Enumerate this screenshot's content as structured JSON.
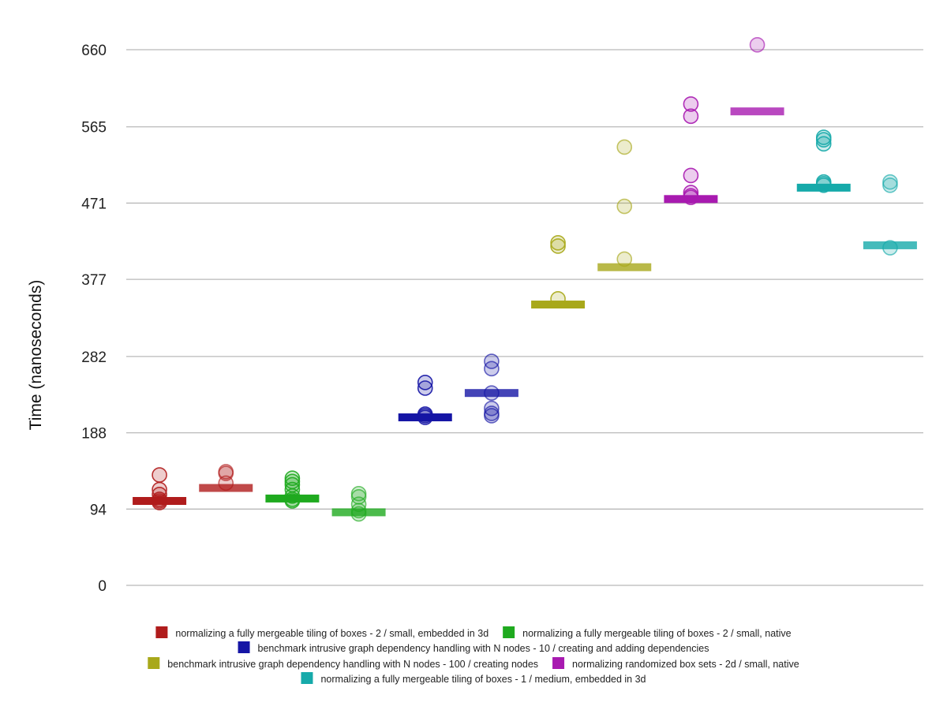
{
  "chart_data": {
    "type": "scatter",
    "ylabel": "Time (nanoseconds)",
    "xlabel": "",
    "ylim": [
      0,
      660
    ],
    "yticks": [
      0,
      94,
      188,
      282,
      377,
      471,
      565,
      660
    ],
    "grid": true,
    "legend_position": "bottom",
    "series": [
      {
        "name": "normalizing a fully mergeable tiling of boxes - 2 / small, embedded in 3d",
        "color": "#b01c1c",
        "groups": [
          {
            "median": 104,
            "points": [
              136,
              118,
              112,
              106,
              104,
              102
            ]
          },
          {
            "median": 120,
            "points": [
              140,
              138,
              126
            ]
          }
        ]
      },
      {
        "name": "normalizing a fully mergeable tiling of boxes - 2 / small, native",
        "color": "#1faa1f",
        "groups": [
          {
            "median": 107,
            "points": [
              132,
              128,
              124,
              118,
              110,
              106,
              104
            ]
          },
          {
            "median": 90,
            "points": [
              113,
              109,
              100,
              92,
              88
            ]
          }
        ]
      },
      {
        "name": "benchmark intrusive graph dependency handling with N nodes - 10 / creating and adding dependencies",
        "color": "#1515a5",
        "groups": [
          {
            "median": 207,
            "points": [
              250,
              243,
              211,
              209,
              207
            ]
          },
          {
            "median": 237,
            "points": [
              276,
              267,
              237,
              218,
              212,
              209
            ]
          }
        ]
      },
      {
        "name": "benchmark intrusive graph dependency handling with N nodes - 100 / creating nodes",
        "color": "#a8a81a",
        "groups": [
          {
            "median": 346,
            "points": [
              422,
              418,
              353
            ]
          },
          {
            "median": 392,
            "points": [
              540,
              467,
              402
            ]
          }
        ]
      },
      {
        "name": "normalizing randomized box sets - 2d / small, native",
        "color": "#a81ab0",
        "groups": [
          {
            "median": 476,
            "points": [
              593,
              578,
              505,
              484,
              480,
              478
            ]
          },
          {
            "median": 584,
            "points": [
              666
            ]
          }
        ]
      },
      {
        "name": "normalizing a fully mergeable tiling of boxes - 1 / medium, embedded in 3d",
        "color": "#16aaaa",
        "groups": [
          {
            "median": 490,
            "points": [
              552,
              549,
              544,
              497,
              495,
              493
            ]
          },
          {
            "median": 419,
            "points": [
              497,
              493,
              416
            ]
          }
        ]
      }
    ]
  }
}
